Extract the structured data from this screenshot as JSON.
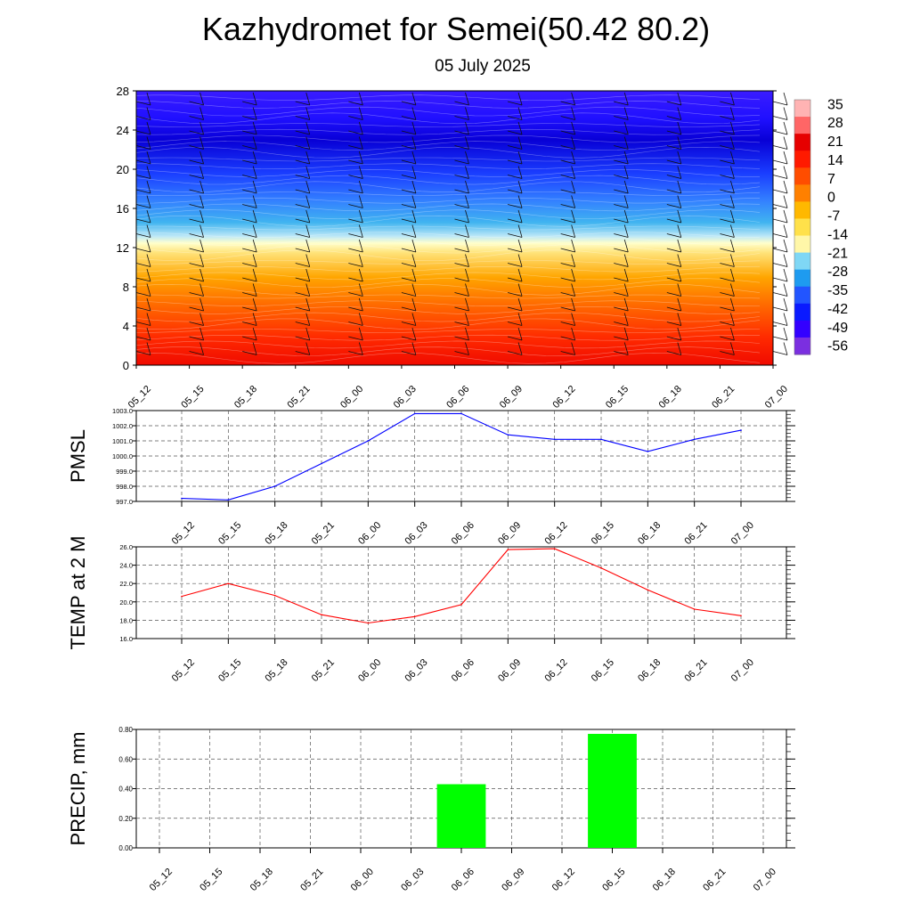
{
  "title": "Kazhydromet for Semei(50.42 80.2)",
  "subtitle": "05 July 2025",
  "time_labels": [
    "05_12",
    "05_15",
    "05_18",
    "05_21",
    "06_00",
    "06_03",
    "06_06",
    "06_09",
    "06_12",
    "06_15",
    "06_18",
    "06_21",
    "07_00"
  ],
  "colors": {
    "pmsl_line": "#0000ff",
    "temp_line": "#ff0000",
    "precip_bar": "#00ff00",
    "colorscale": [
      "#7b2fe0",
      "#3300ff",
      "#0a1aff",
      "#2255ff",
      "#1e9bf0",
      "#7fd7f5",
      "#fff7a8",
      "#ffe14a",
      "#ffb800",
      "#ff8000",
      "#ff4d00",
      "#ff1a00",
      "#e60000",
      "#ff7070",
      "#ffb3b3"
    ]
  },
  "chart_data": [
    {
      "type": "heatmap",
      "title": "",
      "ylim": [
        0,
        28
      ],
      "y_ticks": [
        "0",
        "4",
        "8",
        "12",
        "16",
        "20",
        "24",
        "28"
      ],
      "x": [
        "05_12",
        "05_15",
        "05_18",
        "05_21",
        "06_00",
        "06_03",
        "06_06",
        "06_09",
        "06_12",
        "06_15",
        "06_18",
        "06_21",
        "07_00"
      ],
      "overlay": "wind barbs",
      "colorbar": {
        "levels": [
          "35",
          "28",
          "21",
          "14",
          "7",
          "0",
          "-7",
          "-14",
          "-21",
          "-28",
          "-35",
          "-42",
          "-49",
          "-56"
        ]
      }
    },
    {
      "type": "line",
      "ylabel": "PMSL",
      "ylim": [
        997.0,
        1003.0
      ],
      "y_ticks": [
        "997.0",
        "998.0",
        "999.0",
        "1000.0",
        "1001.0",
        "1002.0",
        "1003.0"
      ],
      "x": [
        "05_12",
        "05_15",
        "05_18",
        "05_21",
        "06_00",
        "06_03",
        "06_06",
        "06_09",
        "06_12",
        "06_15",
        "06_18",
        "06_21",
        "07_00"
      ],
      "values": [
        997.2,
        997.1,
        998.0,
        999.5,
        1001.0,
        1002.8,
        1002.8,
        1001.4,
        1001.1,
        1001.1,
        1000.3,
        1001.1,
        1001.7
      ],
      "grid": true
    },
    {
      "type": "line",
      "ylabel": "TEMP at 2 M",
      "ylim": [
        16.0,
        26.0
      ],
      "y_ticks": [
        "16.0",
        "18.0",
        "20.0",
        "22.0",
        "24.0",
        "26.0"
      ],
      "x": [
        "05_12",
        "05_15",
        "05_18",
        "05_21",
        "06_00",
        "06_03",
        "06_06",
        "06_09",
        "06_12",
        "06_15",
        "06_18",
        "06_21",
        "07_00"
      ],
      "values": [
        20.6,
        22.0,
        20.7,
        18.6,
        17.7,
        18.4,
        19.7,
        25.7,
        25.8,
        23.7,
        21.3,
        19.2,
        18.5
      ],
      "grid": true
    },
    {
      "type": "bar",
      "ylabel": "PRECIP, mm",
      "ylim": [
        0.0,
        0.8
      ],
      "y_ticks": [
        "0.00",
        "0.20",
        "0.40",
        "0.60",
        "0.80"
      ],
      "categories": [
        "05_12",
        "05_15",
        "05_18",
        "05_21",
        "06_00",
        "06_03",
        "06_06",
        "06_09",
        "06_12",
        "06_15",
        "06_18",
        "06_21",
        "07_00"
      ],
      "values": [
        0,
        0,
        0,
        0,
        0,
        0,
        0.43,
        0,
        0,
        0.77,
        0,
        0,
        0
      ],
      "grid": true
    }
  ]
}
